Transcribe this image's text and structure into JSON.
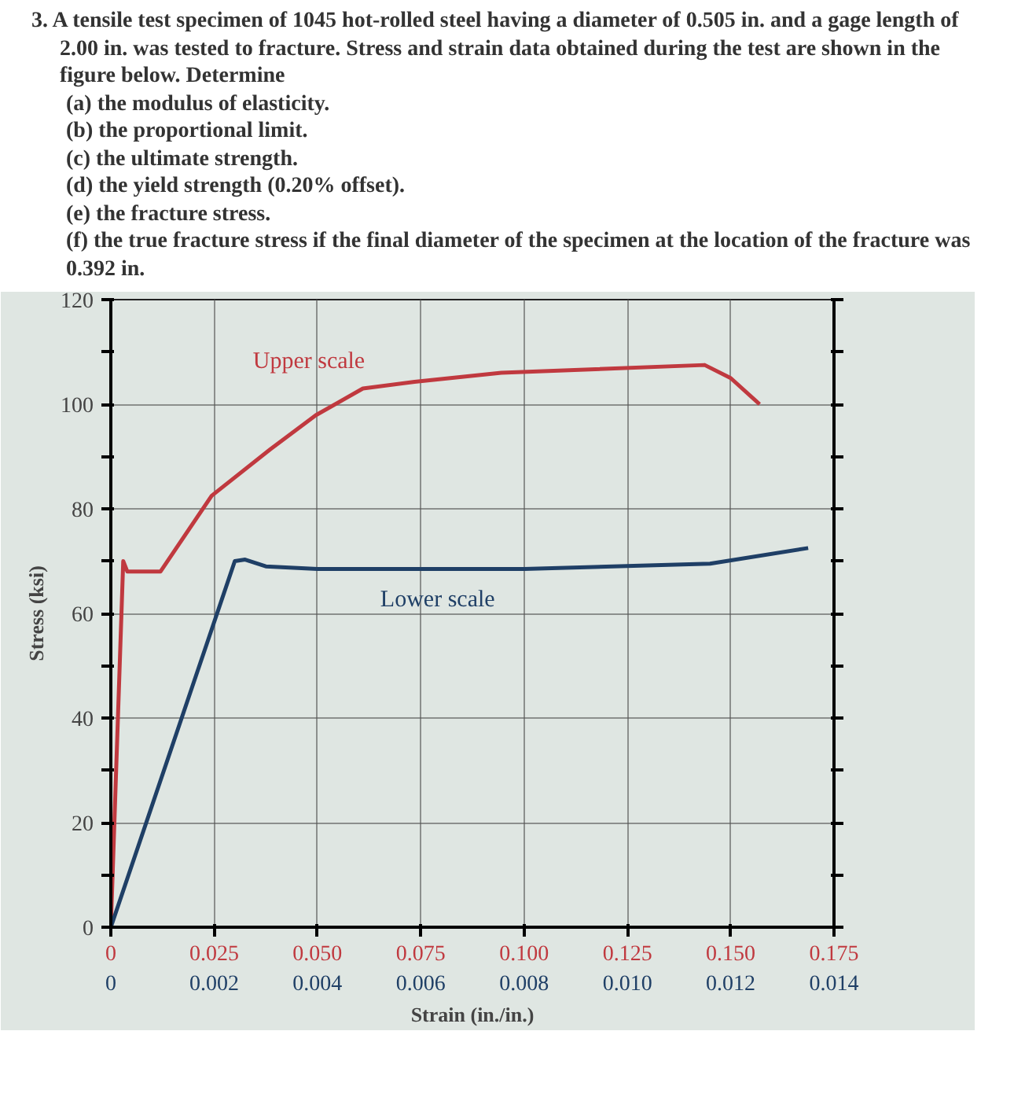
{
  "chart_data": {
    "type": "line",
    "title": "3. A tensile test specimen of 1045 hot-rolled steel having a diameter of 0.505 in. and a gage length of 2.00 in. was tested to fracture. Stress and strain data obtained during the test are shown in the figure below. Determine",
    "annotations": [
      "(a) the modulus of elasticity.",
      "(b) the proportional limit.",
      "(c) the ultimate strength.",
      "(d) the yield strength (0.20% offset).",
      "(e) the fracture stress.",
      "(f) the true fracture stress if the final diameter of the specimen at the location of the fracture was 0.392 in."
    ],
    "xlabel": "Strain (in./in.)",
    "ylabel": "Stress (ksi)",
    "xlim": [
      0,
      0.175
    ],
    "ylim": [
      0,
      120
    ],
    "xticks": [
      0,
      0.025,
      {
        "value": 0.05,
        "label": "0.050"
      },
      0.075,
      {
        "value": 0.1,
        "label": "0.100"
      },
      0.125,
      {
        "value": 0.15,
        "label": "0.150"
      },
      0.175
    ],
    "x2lim": [
      0,
      0.014
    ],
    "x2ticks": [
      0,
      0.002,
      0.004,
      0.006,
      0.008,
      {
        "value": 0.01,
        "label": "0.010"
      },
      0.012,
      0.014
    ],
    "yticks": [
      0,
      {
        "value": 10,
        "label": null
      },
      20,
      {
        "value": 30,
        "label": null
      },
      40,
      {
        "value": 50,
        "label": null
      },
      60,
      {
        "value": 70,
        "label": null
      },
      80,
      {
        "value": 90,
        "label": null
      },
      100,
      {
        "value": 110,
        "label": null
      },
      120
    ],
    "grid": true,
    "marker": "none",
    "line_style": "solid",
    "series": [
      {
        "name": "Upper scale",
        "color": "#c0393f",
        "x": [
          0,
          0.003,
          0.004,
          0.012,
          0.0244,
          0.0386,
          0.0496,
          0.061,
          0.0735,
          0.0945,
          0.1437,
          0.15,
          0.157
        ],
        "values": [
          0,
          70,
          68,
          68,
          82.5,
          91.4,
          97.9,
          103,
          104.3,
          106,
          107.5,
          105,
          100
        ]
      },
      {
        "name": "Lower scale",
        "color": "#1f3f66",
        "axis": "x2",
        "x": [
          0,
          0.0024,
          0.0026,
          0.003,
          0.004,
          0.008,
          0.0116,
          0.0135
        ],
        "values": [
          0,
          70,
          70.3,
          69,
          68.5,
          68.5,
          69.5,
          72.5
        ]
      }
    ]
  }
}
